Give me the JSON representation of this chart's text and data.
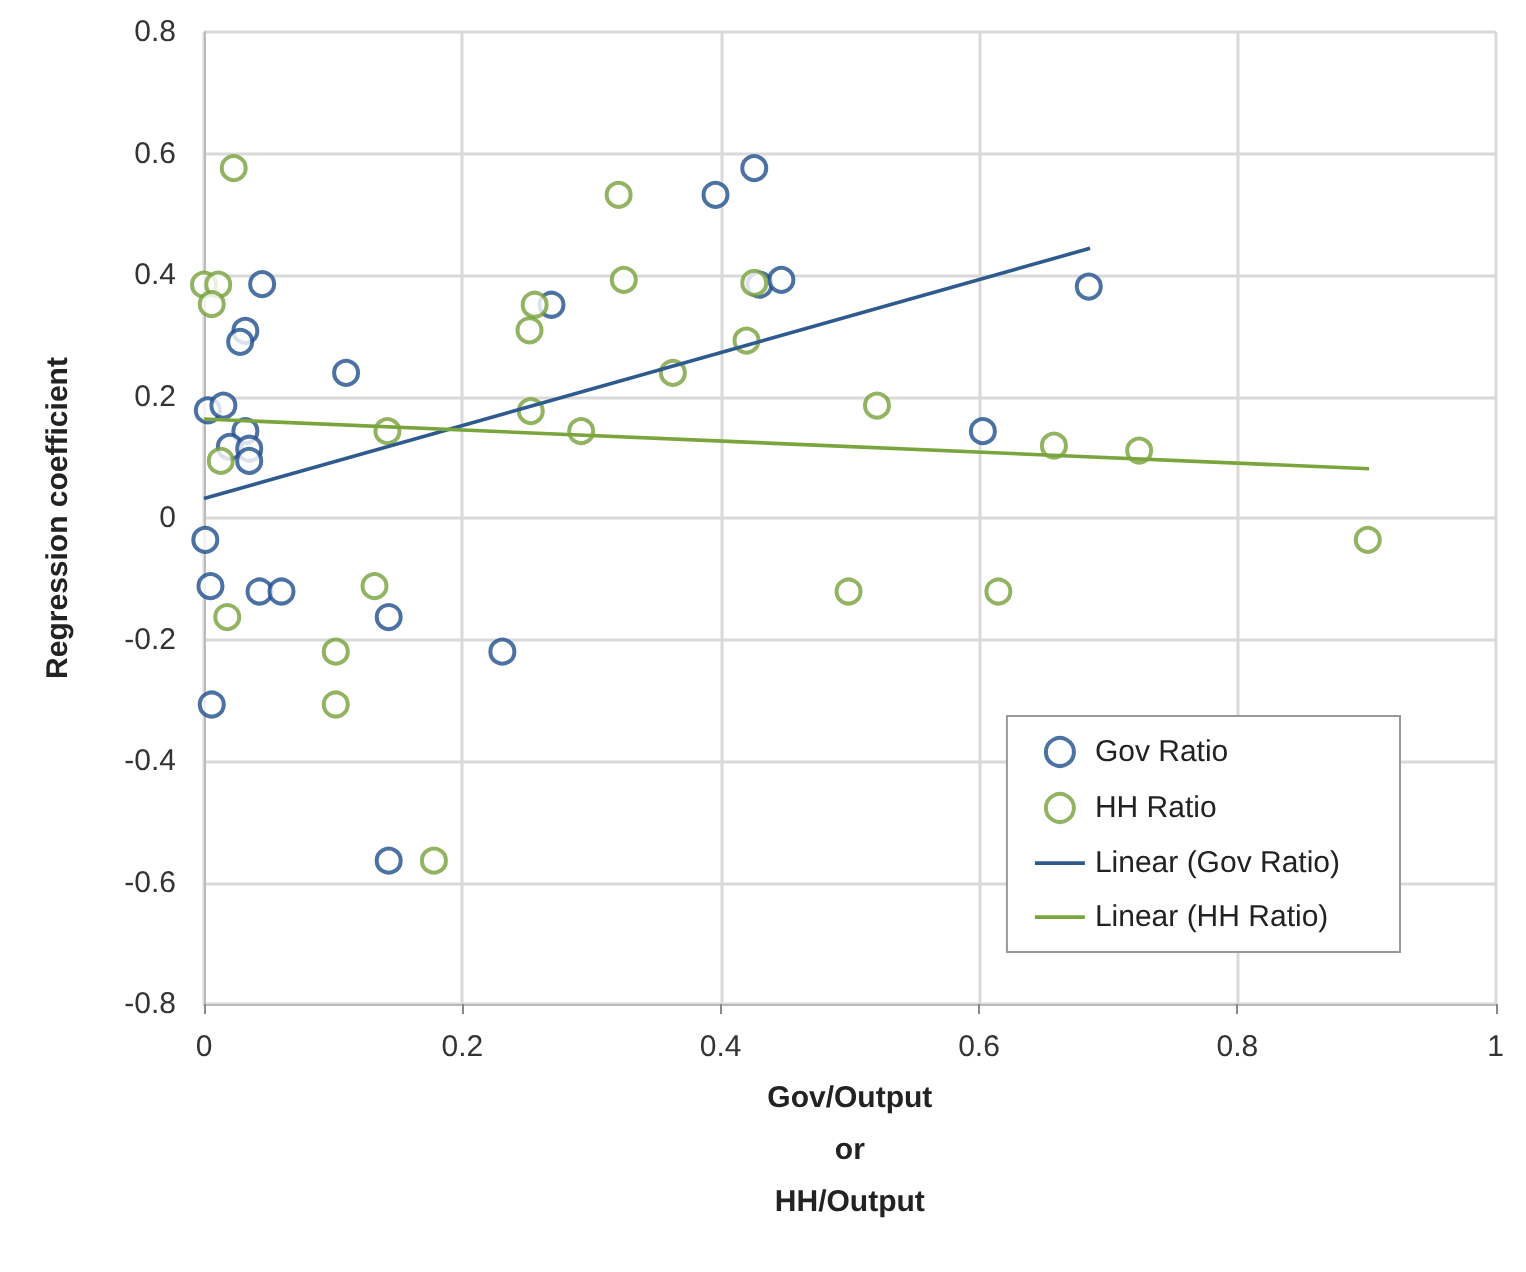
{
  "chart_data": {
    "type": "scatter",
    "xlabel": "Gov/Output\nor\nHH/Output",
    "ylabel": "Regression coefficient",
    "xlim": [
      0,
      1
    ],
    "xticks": [
      0,
      0.2,
      0.4,
      0.6,
      0.8,
      1
    ],
    "ylim": [
      -0.8,
      0.8
    ],
    "yticks": [
      -0.8,
      -0.6,
      -0.4,
      -0.2,
      0,
      0.2,
      0.4,
      0.6,
      0.8
    ],
    "grid": true,
    "legend": "bottom right",
    "marker": "circle",
    "series": [
      {
        "name": "Gov Ratio",
        "color": "#1f4e8c",
        "x": [
          0.045,
          0.032,
          0.028,
          0.11,
          0.003,
          0.015,
          0.032,
          0.02,
          0.035,
          0.035,
          0.001,
          0.005,
          0.043,
          0.06,
          0.143,
          0.231,
          0.006,
          0.143,
          0.426,
          0.396,
          0.43,
          0.447,
          0.269,
          0.603,
          0.685
        ],
        "values": [
          0.385,
          0.308,
          0.29,
          0.239,
          0.177,
          0.185,
          0.143,
          0.117,
          0.114,
          0.094,
          -0.036,
          -0.112,
          -0.121,
          -0.121,
          -0.163,
          -0.22,
          -0.307,
          -0.564,
          0.576,
          0.532,
          0.384,
          0.392,
          0.351,
          0.143,
          0.381
        ]
      },
      {
        "name": "HH Ratio",
        "color": "#77a03a",
        "x": [
          0.023,
          0,
          0.011,
          0.006,
          0.013,
          0.142,
          0.018,
          0.132,
          0.102,
          0.102,
          0.178,
          0.321,
          0.325,
          0.256,
          0.252,
          0.253,
          0.292,
          0.363,
          0.42,
          0.426,
          0.521,
          0.499,
          0.615,
          0.658,
          0.724,
          0.901
        ],
        "values": [
          0.576,
          0.384,
          0.384,
          0.352,
          0.094,
          0.143,
          -0.163,
          -0.112,
          -0.22,
          -0.307,
          -0.564,
          0.532,
          0.392,
          0.351,
          0.309,
          0.176,
          0.143,
          0.239,
          0.292,
          0.387,
          0.185,
          -0.121,
          -0.121,
          0.119,
          0.111,
          -0.036
        ]
      },
      {
        "name": "Linear (Gov Ratio)",
        "type": "line",
        "marker": "none",
        "color": "#2e5a8e",
        "x": [
          0,
          0.686
        ],
        "values": [
          0.032,
          0.444
        ]
      },
      {
        "name": "Linear (HH Ratio)",
        "type": "line",
        "marker": "none",
        "color": "#7aa53c",
        "x": [
          0,
          0.902
        ],
        "values": [
          0.163,
          0.081
        ]
      }
    ]
  }
}
